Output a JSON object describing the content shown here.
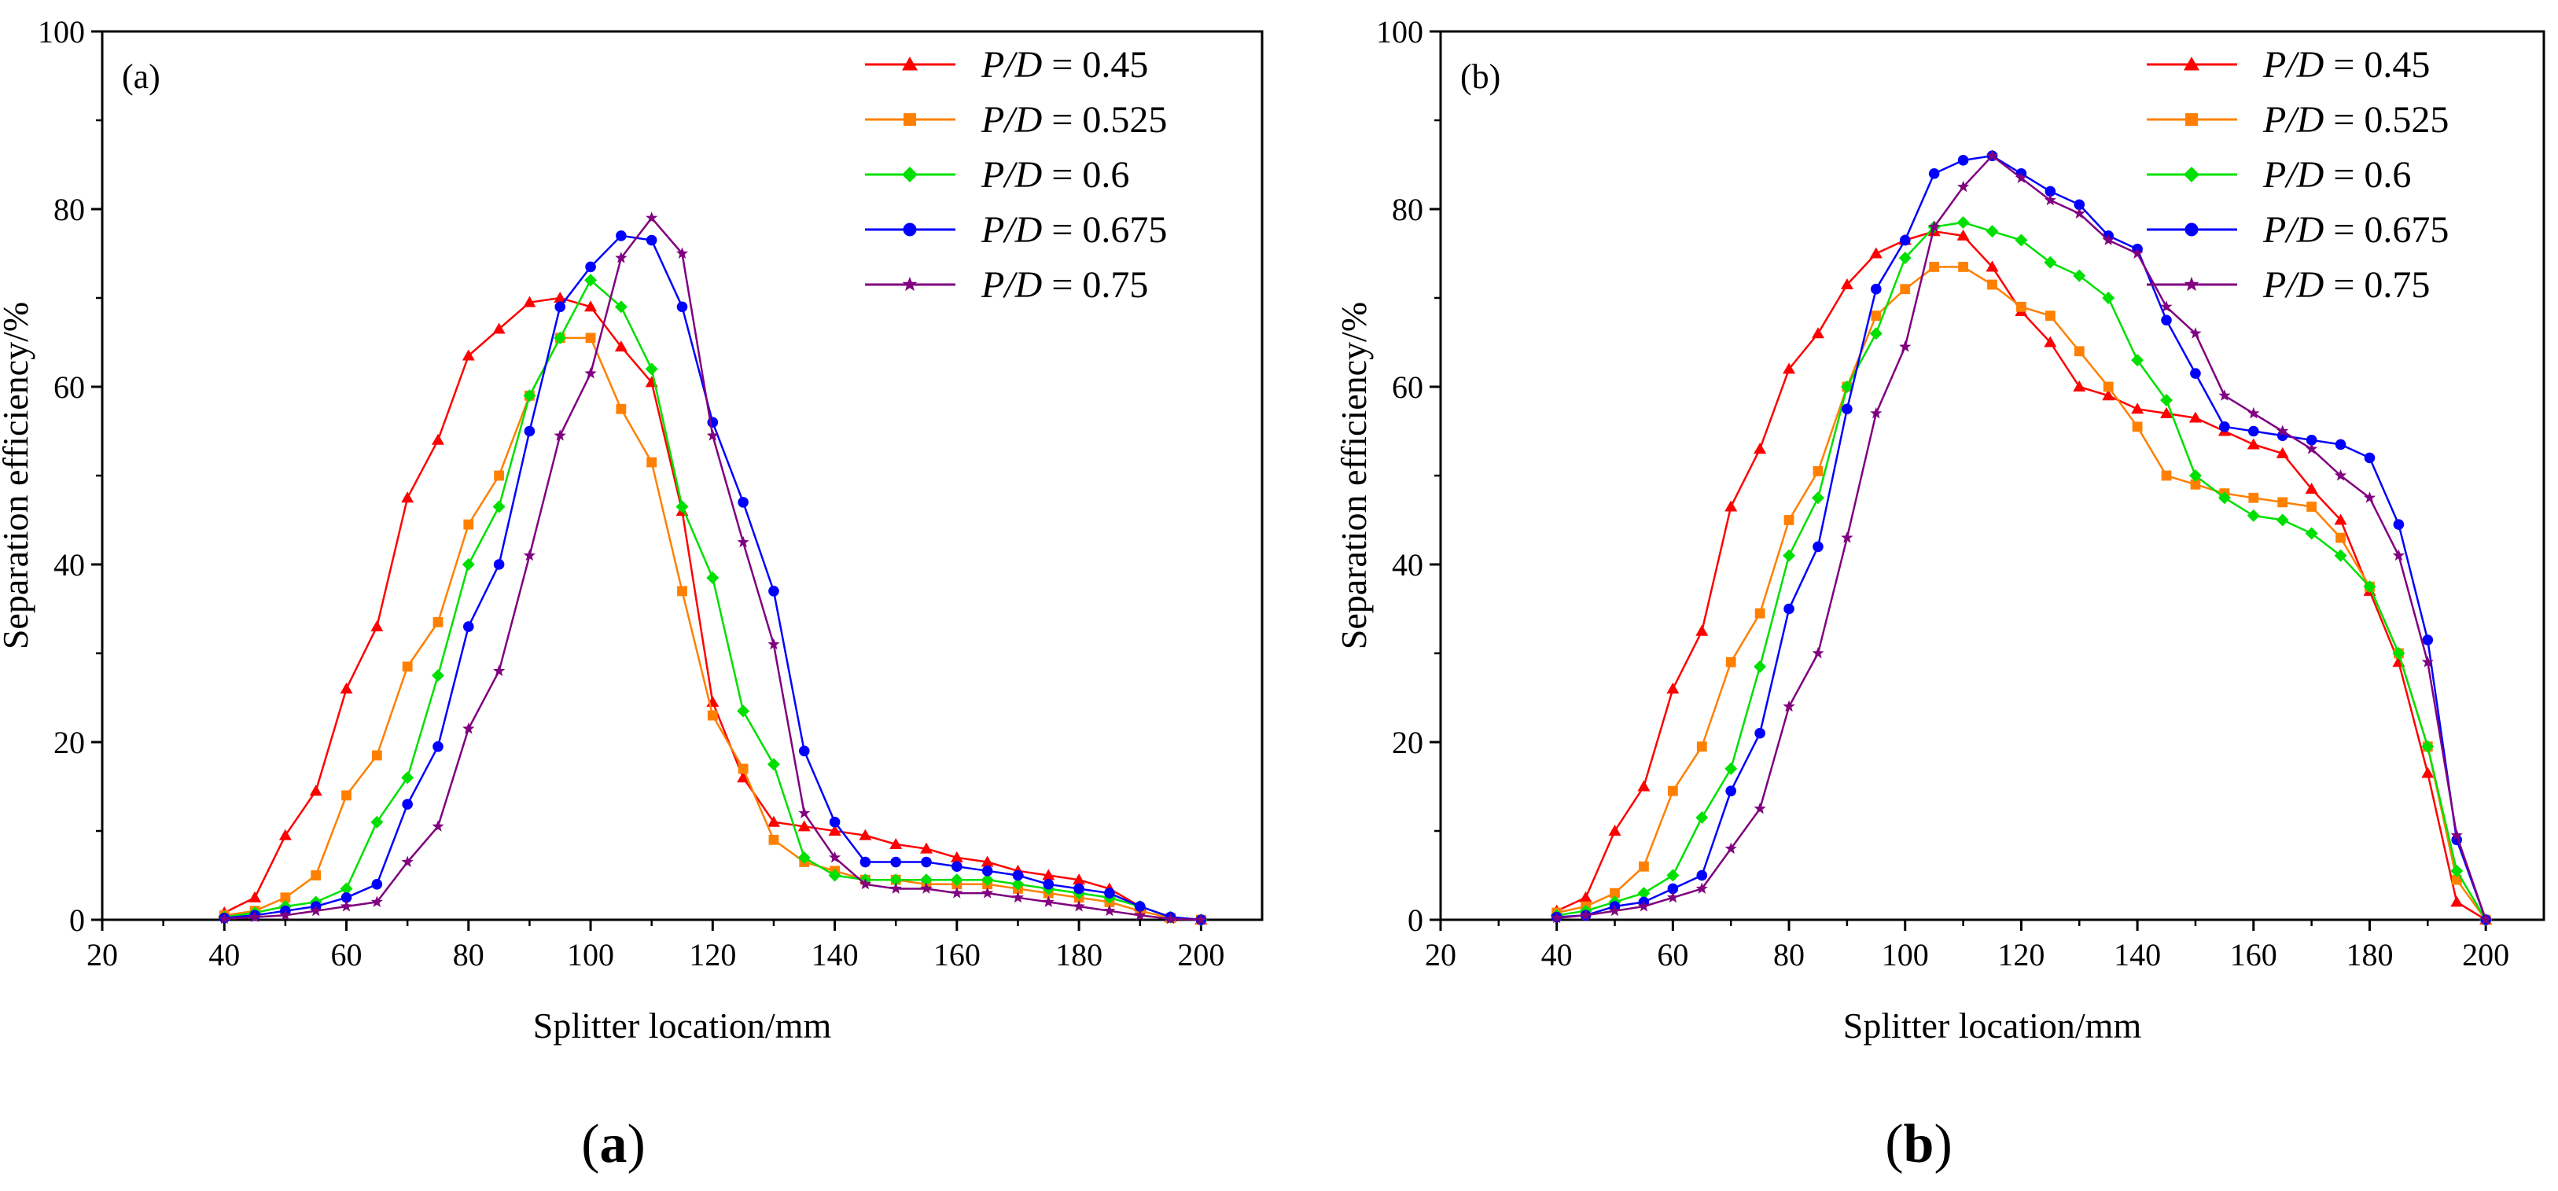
{
  "chart_data": [
    {
      "panel": "a",
      "type": "line",
      "panel_label": "(a)",
      "caption": "(a)",
      "xlabel": "Splitter location/mm",
      "ylabel": "Separation efficiency/%",
      "xlim": [
        20,
        210
      ],
      "ylim": [
        0,
        100
      ],
      "xticks": [
        20,
        40,
        60,
        80,
        100,
        120,
        140,
        160,
        180,
        200
      ],
      "yticks": [
        0,
        20,
        40,
        60,
        80,
        100
      ],
      "legend_position": "top-right",
      "x": [
        40,
        45,
        50,
        55,
        60,
        65,
        70,
        75,
        80,
        85,
        90,
        95,
        100,
        105,
        110,
        115,
        120,
        125,
        130,
        135,
        140,
        145,
        150,
        155,
        160,
        165,
        170,
        175,
        180,
        185,
        190,
        195,
        200
      ],
      "series": [
        {
          "name": "P/D = 0.45",
          "legend_var": "P/D",
          "legend_value": "= 0.45",
          "color": "#ff0000",
          "marker": "triangle",
          "values": [
            0.8,
            2.5,
            9.5,
            14.5,
            26,
            33,
            47.5,
            54,
            63.5,
            66.5,
            69.5,
            70,
            69,
            64.5,
            60.5,
            46,
            24.5,
            16,
            11,
            10.5,
            10,
            9.5,
            8.5,
            8,
            7,
            6.5,
            5.5,
            5,
            4.5,
            3.5,
            1.5,
            0.3,
            0
          ]
        },
        {
          "name": "P/D = 0.525",
          "legend_var": "P/D",
          "legend_value": "= 0.525",
          "color": "#ff8000",
          "marker": "square",
          "values": [
            0.5,
            1,
            2.5,
            5,
            14,
            18.5,
            28.5,
            33.5,
            44.5,
            50,
            59,
            65.5,
            65.5,
            57.5,
            51.5,
            37,
            23,
            17,
            9,
            6.5,
            5.5,
            4.5,
            4.5,
            4,
            4,
            4,
            3.5,
            3,
            2.5,
            2,
            1,
            0.2,
            0
          ]
        },
        {
          "name": "P/D = 0.6",
          "legend_var": "P/D",
          "legend_value": "= 0.6",
          "color": "#00e000",
          "marker": "diamond",
          "values": [
            0.3,
            0.8,
            1.5,
            2,
            3.5,
            11,
            16,
            27.5,
            40,
            46.5,
            59,
            65.5,
            72,
            69,
            62,
            46.5,
            38.5,
            23.5,
            17.5,
            7,
            5,
            4.5,
            4.5,
            4.5,
            4.5,
            4.5,
            4,
            3.5,
            3,
            2.5,
            1.5,
            0.3,
            0
          ]
        },
        {
          "name": "P/D = 0.675",
          "legend_var": "P/D",
          "legend_value": "= 0.675",
          "color": "#0000ff",
          "marker": "circle",
          "values": [
            0.2,
            0.5,
            1,
            1.5,
            2.5,
            4,
            13,
            19.5,
            33,
            40,
            55,
            69,
            73.5,
            77,
            76.5,
            69,
            56,
            47,
            37,
            19,
            11,
            6.5,
            6.5,
            6.5,
            6,
            5.5,
            5,
            4,
            3.5,
            3,
            1.5,
            0.3,
            0
          ]
        },
        {
          "name": "P/D = 0.75",
          "legend_var": "P/D",
          "legend_value": "= 0.75",
          "color": "#800080",
          "marker": "star",
          "values": [
            0.1,
            0.3,
            0.5,
            1,
            1.5,
            2,
            6.5,
            10.5,
            21.5,
            28,
            41,
            54.5,
            61.5,
            74.5,
            79,
            75,
            54.5,
            42.5,
            31,
            12,
            7,
            4,
            3.5,
            3.5,
            3,
            3,
            2.5,
            2,
            1.5,
            1,
            0.5,
            0.1,
            0
          ]
        }
      ]
    },
    {
      "panel": "b",
      "type": "line",
      "panel_label": "(b)",
      "caption": "(b)",
      "xlabel": "Splitter location/mm",
      "ylabel": "Separation efficiency/%",
      "xlim": [
        20,
        210
      ],
      "ylim": [
        0,
        100
      ],
      "xticks": [
        20,
        40,
        60,
        80,
        100,
        120,
        140,
        160,
        180,
        200
      ],
      "yticks": [
        0,
        20,
        40,
        60,
        80,
        100
      ],
      "legend_position": "top-right",
      "x": [
        40,
        45,
        50,
        55,
        60,
        65,
        70,
        75,
        80,
        85,
        90,
        95,
        100,
        105,
        110,
        115,
        120,
        125,
        130,
        135,
        140,
        145,
        150,
        155,
        160,
        165,
        170,
        175,
        180,
        185,
        190,
        195,
        200
      ],
      "series": [
        {
          "name": "P/D = 0.45",
          "legend_var": "P/D",
          "legend_value": "= 0.45",
          "color": "#ff0000",
          "marker": "triangle",
          "values": [
            1,
            2.5,
            10,
            15,
            26,
            32.5,
            46.5,
            53,
            62,
            66,
            71.5,
            75,
            76.5,
            77.5,
            77,
            73.5,
            68.5,
            65,
            60,
            59,
            57.5,
            57,
            56.5,
            55,
            53.5,
            52.5,
            48.5,
            45,
            37,
            29,
            16.5,
            2,
            0
          ]
        },
        {
          "name": "P/D = 0.525",
          "legend_var": "P/D",
          "legend_value": "= 0.525",
          "color": "#ff8000",
          "marker": "square",
          "values": [
            0.8,
            1.5,
            3,
            6,
            14.5,
            19.5,
            29,
            34.5,
            45,
            50.5,
            60,
            68,
            71,
            73.5,
            73.5,
            71.5,
            69,
            68,
            64,
            60,
            55.5,
            50,
            49,
            48,
            47.5,
            47,
            46.5,
            43,
            37.5,
            30,
            19.5,
            4.5,
            0
          ]
        },
        {
          "name": "P/D = 0.6",
          "legend_var": "P/D",
          "legend_value": "= 0.6",
          "color": "#00e000",
          "marker": "diamond",
          "values": [
            0.5,
            1,
            2,
            3,
            5,
            11.5,
            17,
            28.5,
            41,
            47.5,
            60,
            66,
            74.5,
            78,
            78.5,
            77.5,
            76.5,
            74,
            72.5,
            70,
            63,
            58.5,
            50,
            47.5,
            45.5,
            45,
            43.5,
            41,
            37.5,
            30,
            19.5,
            5.5,
            0
          ]
        },
        {
          "name": "P/D = 0.675",
          "legend_var": "P/D",
          "legend_value": "= 0.675",
          "color": "#0000ff",
          "marker": "circle",
          "values": [
            0.3,
            0.5,
            1.5,
            2,
            3.5,
            5,
            14.5,
            21,
            35,
            42,
            57.5,
            71,
            76.5,
            84,
            85.5,
            86,
            84,
            82,
            80.5,
            77,
            75.5,
            67.5,
            61.5,
            55.5,
            55,
            54.5,
            54,
            53.5,
            52,
            44.5,
            31.5,
            9,
            0
          ]
        },
        {
          "name": "P/D = 0.75",
          "legend_var": "P/D",
          "legend_value": "= 0.75",
          "color": "#800080",
          "marker": "star",
          "values": [
            0.2,
            0.5,
            1,
            1.5,
            2.5,
            3.5,
            8,
            12.5,
            24,
            30,
            43,
            57,
            64.5,
            78,
            82.5,
            86,
            83.5,
            81,
            79.5,
            76.5,
            75,
            69,
            66,
            59,
            57,
            55,
            53,
            50,
            47.5,
            41,
            29,
            9.5,
            0
          ]
        }
      ]
    }
  ]
}
